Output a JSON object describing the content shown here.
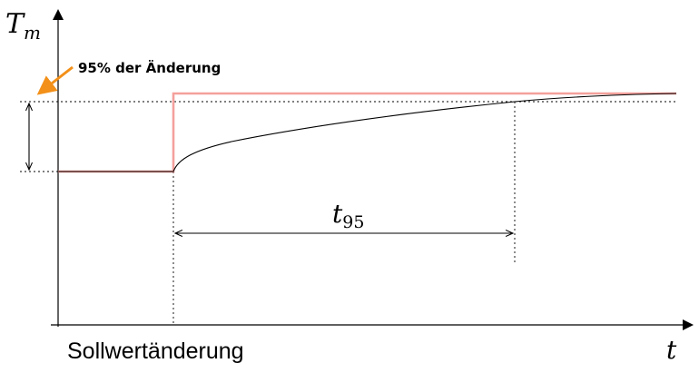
{
  "axes": {
    "y_label_main": "T",
    "y_label_sub": "m",
    "x_label": "t"
  },
  "annotations": {
    "percent_label": "95% der Änderung",
    "interval_label_main": "t",
    "interval_label_sub": "95",
    "event_label": "Sollwertänderung"
  },
  "colors": {
    "setpoint": "#f4a09c",
    "response": "#000000",
    "arrow": "#f39019",
    "axes": "#000000",
    "guides": "#000000"
  }
}
